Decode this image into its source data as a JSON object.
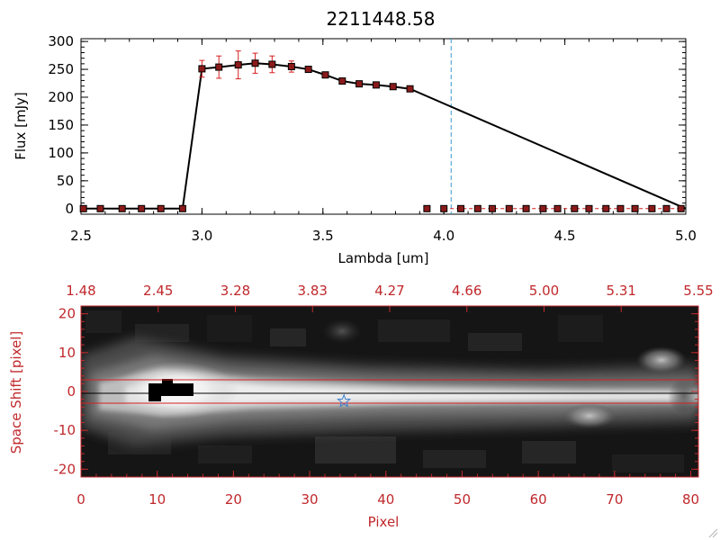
{
  "chart_data": [
    {
      "type": "line",
      "title": "2211448.58",
      "xlabel": "Lambda [um]",
      "ylabel": "Flux [mJy]",
      "xlim": [
        2.5,
        5.0
      ],
      "ylim": [
        -10,
        305
      ],
      "x_ticks": [
        "2.5",
        "3.0",
        "3.5",
        "4.0",
        "4.5",
        "5.0"
      ],
      "y_ticks": [
        "0",
        "50",
        "100",
        "150",
        "200",
        "250",
        "300"
      ],
      "marker_color": "#8b1a1a",
      "errorbar_color": "#d62020",
      "reference_line": {
        "x": 4.03,
        "color": "#3a9bd0",
        "style": "dashed"
      },
      "zero_line_color": "#d62020",
      "series": [
        {
          "x": [
            2.51,
            2.58,
            2.67,
            2.75,
            2.83,
            2.92,
            3.0,
            3.07,
            3.15,
            3.22,
            3.29,
            3.37,
            3.44,
            3.51,
            3.58,
            3.65,
            3.72,
            3.79,
            3.86,
            3.93,
            4.0,
            4.07,
            4.14,
            4.2,
            4.27,
            4.34,
            4.41,
            4.47,
            4.54,
            4.6,
            4.67,
            4.73,
            4.79,
            4.86,
            4.92,
            4.98
          ],
          "y": [
            0,
            0,
            0,
            0,
            0,
            0,
            251,
            254,
            258,
            261,
            259,
            255,
            250,
            240,
            229,
            224,
            222,
            219,
            215,
            0,
            0,
            0,
            0,
            0,
            0,
            0,
            0,
            0,
            0,
            0,
            0,
            0,
            0,
            0,
            0,
            0
          ],
          "err": [
            0,
            0,
            0,
            0,
            0,
            0,
            15,
            20,
            25,
            18,
            15,
            10,
            5,
            0,
            0,
            0,
            0,
            0,
            0,
            0,
            0,
            0,
            0,
            0,
            0,
            0,
            0,
            0,
            0,
            0,
            0,
            0,
            0,
            0,
            0,
            0
          ],
          "line_x": [
            2.5,
            2.92,
            3.0,
            3.07,
            3.15,
            3.22,
            3.29,
            3.37,
            3.44,
            3.51,
            3.58,
            3.65,
            3.72,
            3.79,
            3.86,
            5.0
          ],
          "line_y": [
            0,
            0,
            251,
            254,
            258,
            261,
            259,
            255,
            250,
            240,
            229,
            224,
            222,
            219,
            215,
            0
          ]
        }
      ]
    },
    {
      "type": "heatmap",
      "xlabel": "Pixel",
      "ylabel": "Space Shift [pixel]",
      "xlim": [
        0,
        81
      ],
      "ylim": [
        -22,
        22
      ],
      "x_ticks": [
        "0",
        "10",
        "20",
        "30",
        "40",
        "50",
        "60",
        "70",
        "80"
      ],
      "y_ticks": [
        "-20",
        "-10",
        "0",
        "10",
        "20"
      ],
      "top_ticks": [
        "1.48",
        "2.45",
        "3.28",
        "3.83",
        "4.27",
        "4.66",
        "5.00",
        "5.31",
        "5.55"
      ],
      "axis_color": "#c0282c",
      "aperture_lines": [
        3,
        -3
      ],
      "aperture_color": "#d62020",
      "source_marker": {
        "x": 34.5,
        "y": -2.5,
        "symbol": "star",
        "color": "#3a7fd0"
      }
    }
  ]
}
